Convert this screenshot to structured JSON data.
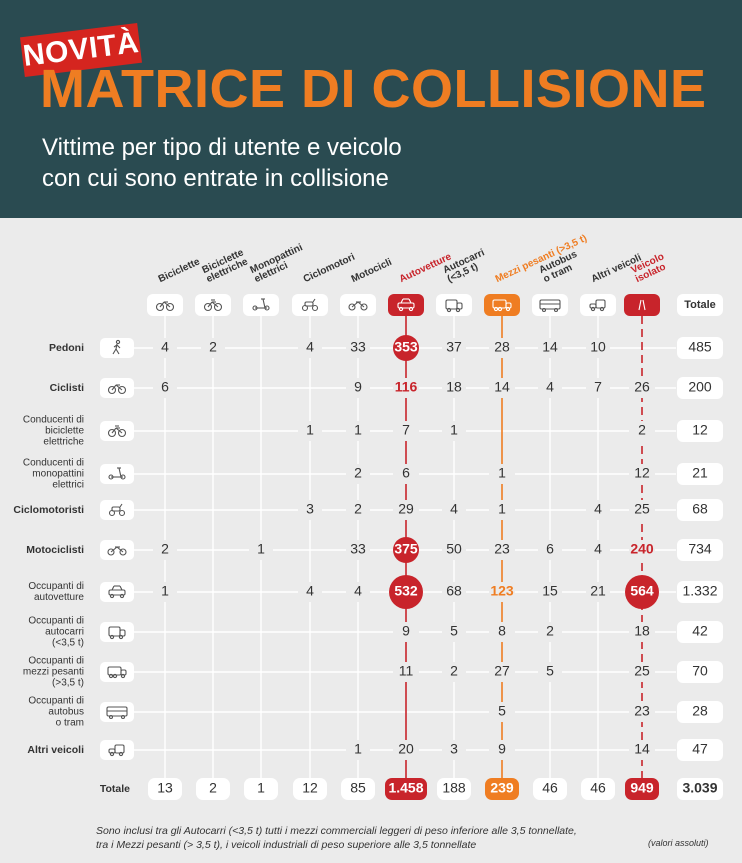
{
  "header": {
    "badge": "NOVITÀ",
    "title": "MATRICE DI COLLISIONE",
    "subtitle_lines": [
      "Vittime per tipo di utente e veicolo",
      "con cui sono entrate in collisione"
    ]
  },
  "colors": {
    "header_bg": "#2a4b51",
    "title": "#ef7d22",
    "badge": "#d5251f",
    "red": "#c8242b",
    "orange": "#ef7d22",
    "text": "#333333",
    "background": "#ebebeb"
  },
  "chart_data": {
    "type": "table",
    "columns": [
      {
        "label": "Biciclette",
        "icon": "bicycle-icon",
        "highlight": null
      },
      {
        "label": "Biciclette elettriche",
        "icon": "ebike-icon",
        "highlight": null
      },
      {
        "label": "Monopattini elettrici",
        "icon": "scooter-icon",
        "highlight": null
      },
      {
        "label": "Ciclomotori",
        "icon": "moped-icon",
        "highlight": null
      },
      {
        "label": "Motocicli",
        "icon": "motorcycle-icon",
        "highlight": null
      },
      {
        "label": "Autovetture",
        "icon": "car-icon",
        "highlight": "red"
      },
      {
        "label": "Autocarri (<3,5 t)",
        "icon": "van-icon",
        "highlight": null
      },
      {
        "label": "Mezzi pesanti (>3,5 t)",
        "icon": "truck-icon",
        "highlight": "orange"
      },
      {
        "label": "Autobus o tram",
        "icon": "bus-icon",
        "highlight": null
      },
      {
        "label": "Altri veicoli",
        "icon": "other-vehicle-icon",
        "highlight": null
      },
      {
        "label": "Veicolo isolato",
        "icon": "road-icon",
        "highlight": "red"
      }
    ],
    "total_header": "Totale",
    "rows": [
      {
        "label": "Pedoni",
        "icon": "pedestrian-icon",
        "values": [
          4,
          2,
          null,
          4,
          33,
          353,
          37,
          28,
          14,
          10,
          null
        ],
        "total": "485"
      },
      {
        "label": "Ciclisti",
        "icon": "bicycle-icon",
        "values": [
          6,
          null,
          null,
          null,
          9,
          116,
          18,
          14,
          4,
          7,
          26
        ],
        "total": "200"
      },
      {
        "label": "Conducenti di biciclette elettriche",
        "icon": "ebike-icon",
        "values": [
          null,
          null,
          null,
          1,
          1,
          7,
          1,
          null,
          null,
          null,
          2
        ],
        "total": "12"
      },
      {
        "label": "Conducenti di monopattini elettrici",
        "icon": "scooter-icon",
        "values": [
          null,
          null,
          null,
          null,
          2,
          6,
          null,
          1,
          null,
          null,
          12
        ],
        "total": "21"
      },
      {
        "label": "Ciclomotoristi",
        "icon": "moped-icon",
        "values": [
          null,
          null,
          null,
          3,
          2,
          29,
          4,
          1,
          null,
          4,
          25
        ],
        "total": "68"
      },
      {
        "label": "Motociclisti",
        "icon": "motorcycle-icon",
        "values": [
          2,
          null,
          1,
          null,
          33,
          375,
          50,
          23,
          6,
          4,
          240
        ],
        "total": "734"
      },
      {
        "label": "Occupanti di autovetture",
        "icon": "car-icon",
        "values": [
          1,
          null,
          null,
          4,
          4,
          532,
          68,
          123,
          15,
          21,
          564
        ],
        "total": "1.332"
      },
      {
        "label": "Occupanti di autocarri (<3,5 t)",
        "icon": "van-icon",
        "values": [
          null,
          null,
          null,
          null,
          null,
          9,
          5,
          8,
          2,
          null,
          18
        ],
        "total": "42"
      },
      {
        "label": "Occupanti di mezzi pesanti (>3,5 t)",
        "icon": "truck-icon",
        "values": [
          null,
          null,
          null,
          null,
          null,
          11,
          2,
          27,
          5,
          null,
          25
        ],
        "total": "70"
      },
      {
        "label": "Occupanti di autobus o tram",
        "icon": "bus-icon",
        "values": [
          null,
          null,
          null,
          null,
          null,
          null,
          null,
          5,
          null,
          null,
          23
        ],
        "total": "28"
      },
      {
        "label": "Altri veicoli",
        "icon": "other-vehicle-icon",
        "values": [
          null,
          null,
          null,
          null,
          1,
          20,
          3,
          9,
          null,
          null,
          14
        ],
        "total": "47"
      }
    ],
    "totals": {
      "label": "Totale",
      "values": [
        "13",
        "2",
        "1",
        "12",
        "85",
        "1.458",
        "188",
        "239",
        "46",
        "46",
        "949"
      ],
      "grand_total": "3.039"
    }
  },
  "notes": {
    "lines": [
      "Sono inclusi tra gli Autocarri (<3,5 t) tutti i mezzi commerciali leggeri di peso inferiore alle 3,5 tonnellate,",
      "tra i Mezzi pesanti (> 3,5 t), i veicoli industriali di peso superiore alle 3,5 tonnellate"
    ],
    "unit": "(valori assoluti)"
  }
}
